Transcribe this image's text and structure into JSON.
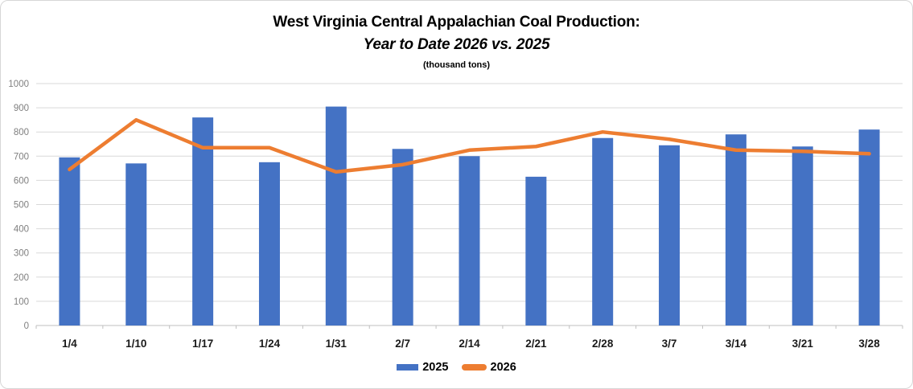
{
  "chart_data": {
    "type": "bar",
    "title_line1": "West Virginia Central Appalachian Coal Production:",
    "title_line2": "Year to Date 2026 vs. 2025",
    "subtitle": "(thousand tons)",
    "categories": [
      "1/4",
      "1/10",
      "1/17",
      "1/24",
      "1/31",
      "2/7",
      "2/14",
      "2/21",
      "2/28",
      "3/7",
      "3/14",
      "3/21",
      "3/28"
    ],
    "series": [
      {
        "name": "2025",
        "type": "bar",
        "color": "#4472C4",
        "values": [
          695,
          670,
          860,
          675,
          905,
          730,
          700,
          615,
          775,
          745,
          790,
          740,
          810
        ]
      },
      {
        "name": "2026",
        "type": "line",
        "color": "#ED7D31",
        "values": [
          645,
          850,
          735,
          735,
          635,
          665,
          725,
          740,
          800,
          770,
          725,
          720,
          710
        ]
      }
    ],
    "xlabel": "",
    "ylabel": "",
    "ylim": [
      0,
      1000
    ],
    "ytick_step": 100,
    "grid": true,
    "legend_position": "bottom",
    "colors": {
      "gridline": "#D9D9D9",
      "axis_line": "#BFBFBF",
      "y_tick_label": "#7F7F7F",
      "x_tick_label": "#1A1A1A"
    }
  }
}
